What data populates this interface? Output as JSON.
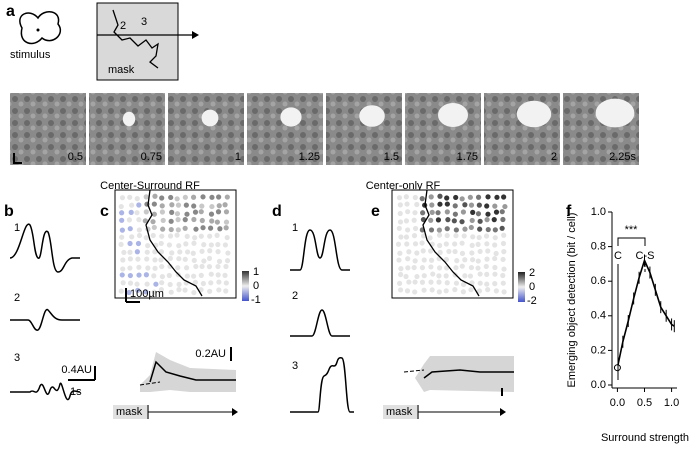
{
  "panel_labels": [
    "a",
    "b",
    "c",
    "d",
    "e",
    "f"
  ],
  "panel_a": {
    "stimulus": "stimulus",
    "mask": "mask",
    "positions": [
      "2",
      "3"
    ],
    "frame_times": [
      "0.5",
      "0.75",
      "1",
      "1.25",
      "1.5",
      "1.75",
      "2",
      "2.25s"
    ]
  },
  "section_titles": [
    "Center-Surround RF",
    "Center-only RF"
  ],
  "panel_b": {
    "labels": [
      "1",
      "2",
      "3"
    ],
    "scale_amplitude": "0.4AU",
    "scale_time": "1s"
  },
  "panel_c": {
    "scale_bar": "100µm",
    "colorbar_ticks": [
      "1",
      "0",
      "-1"
    ],
    "scale_amplitude": "0.2AU",
    "mask": "mask"
  },
  "panel_d": {
    "labels": [
      "1",
      "2",
      "3"
    ]
  },
  "panel_e": {
    "colorbar_ticks": [
      "2",
      "0",
      "-2"
    ],
    "mask": "mask"
  },
  "chart_data": {
    "type": "line",
    "ylabel": "Emerging object detection (bit / cell)",
    "xlabel": "Surround strength",
    "x": [
      0,
      0.1,
      0.2,
      0.3,
      0.4,
      0.5,
      0.6,
      0.7,
      0.8,
      0.9,
      1.0,
      1.05
    ],
    "values": [
      0.1,
      0.25,
      0.37,
      0.5,
      0.62,
      0.72,
      0.65,
      0.55,
      0.45,
      0.4,
      0.35,
      0.34
    ],
    "color": "#000000",
    "xlim": [
      -0.1,
      1.1
    ],
    "ylim": [
      0,
      1
    ],
    "xticks": [
      {
        "value": 0,
        "label": "0.0"
      },
      0.5,
      {
        "value": 1,
        "label": "1.0"
      }
    ],
    "yticks": [
      {
        "value": 0,
        "label": "0.0"
      },
      0.2,
      0.4,
      0.6,
      0.8,
      {
        "value": 1,
        "label": "1.0"
      }
    ],
    "annotations": [
      "***",
      "C",
      "C-S"
    ]
  }
}
